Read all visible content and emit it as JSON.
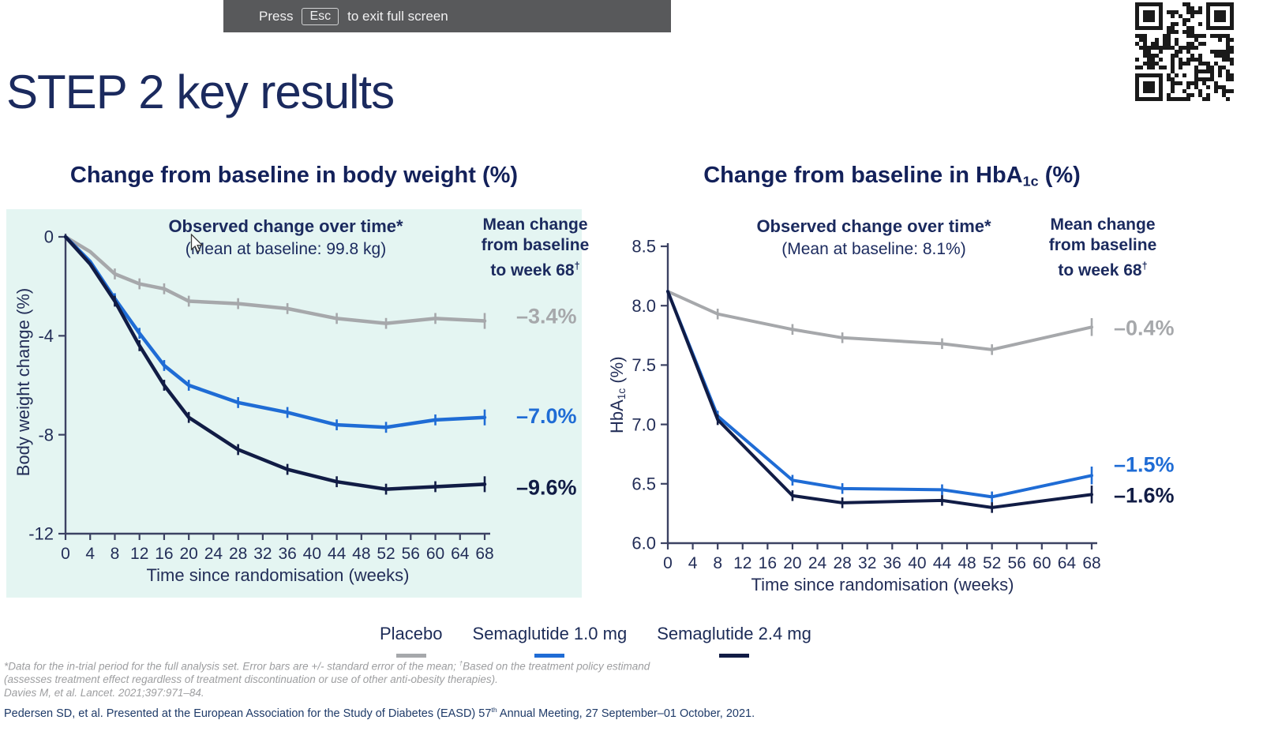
{
  "banner": {
    "press_label": "Press",
    "key_label": "Esc",
    "suffix_label": "to exit full screen"
  },
  "slide_title": "STEP 2 key results",
  "chart_data": [
    {
      "type": "line",
      "title": "Change from baseline in body weight (%)",
      "annotation_title": "Observed change over time*",
      "annotation_subtitle": "(Mean at baseline: 99.8 kg)",
      "right_header": {
        "line1": "Mean change",
        "line2": "from baseline",
        "line3": "to week 68",
        "line3_sup": "†"
      },
      "xlabel": "Time since randomisation (weeks)",
      "ylabel": "Body weight change (%)",
      "xlim": [
        0,
        68
      ],
      "ylim": [
        -12,
        0
      ],
      "grid": false,
      "xticks": [
        0,
        4,
        8,
        12,
        16,
        20,
        24,
        28,
        32,
        36,
        40,
        44,
        48,
        52,
        56,
        60,
        64,
        68
      ],
      "yticks": [
        {
          "v": 0,
          "label": "0"
        },
        {
          "v": -4,
          "label": "-4"
        },
        {
          "v": -8,
          "label": "-8"
        },
        {
          "v": -12,
          "label": "-12"
        }
      ],
      "x": [
        0,
        4,
        8,
        12,
        16,
        20,
        28,
        36,
        44,
        52,
        60,
        68
      ],
      "error_bars": {
        "half": 0.22,
        "last_half": 0.32
      },
      "series": [
        {
          "name": "Placebo",
          "color": "#a6a8ab",
          "end_label": "–3.4%",
          "values": [
            0,
            -0.6,
            -1.5,
            -1.9,
            -2.1,
            -2.6,
            -2.7,
            -2.9,
            -3.3,
            -3.5,
            -3.3,
            -3.4
          ]
        },
        {
          "name": "Semaglutide 1.0 mg",
          "color": "#1f6cd5",
          "end_label": "–7.0%",
          "values": [
            0,
            -1.0,
            -2.5,
            -3.9,
            -5.2,
            -6.0,
            -6.7,
            -7.1,
            -7.6,
            -7.7,
            -7.4,
            -7.3
          ]
        },
        {
          "name": "Semaglutide 2.4 mg",
          "color": "#111c45",
          "end_label": "–9.6%",
          "values": [
            0,
            -1.1,
            -2.6,
            -4.4,
            -6.0,
            -7.3,
            -8.6,
            -9.4,
            -9.9,
            -10.2,
            -10.1,
            -10.0
          ]
        }
      ]
    },
    {
      "type": "line",
      "title_parts": {
        "main": "Change from baseline in HbA",
        "sub": "1c",
        "tail": " (%)"
      },
      "annotation_title": "Observed change over time*",
      "annotation_subtitle": "(Mean at baseline: 8.1%)",
      "right_header": {
        "line1": "Mean change",
        "line2": "from baseline",
        "line3": "to week 68",
        "line3_sup": "†"
      },
      "xlabel": "Time since randomisation (weeks)",
      "ylabel_parts": {
        "main": "HbA",
        "sub": "1c",
        "tail": " (%)"
      },
      "xlim": [
        0,
        68
      ],
      "ylim": [
        6.0,
        8.5
      ],
      "grid": false,
      "xticks": [
        0,
        4,
        8,
        12,
        16,
        20,
        24,
        28,
        32,
        36,
        40,
        44,
        48,
        52,
        56,
        60,
        64,
        68
      ],
      "yticks": [
        {
          "v": 8.5,
          "label": "8.5"
        },
        {
          "v": 8.0,
          "label": "8.0"
        },
        {
          "v": 7.5,
          "label": "7.5"
        },
        {
          "v": 7.0,
          "label": "7.0"
        },
        {
          "v": 6.5,
          "label": "6.5"
        },
        {
          "v": 6.0,
          "label": "6.0"
        }
      ],
      "x": [
        0,
        8,
        20,
        28,
        44,
        52,
        68
      ],
      "error_bars": {
        "half": 0.045,
        "last_half": 0.075
      },
      "series": [
        {
          "name": "Placebo",
          "color": "#a6a8ab",
          "end_label": "–0.4%",
          "values": [
            8.12,
            7.93,
            7.8,
            7.73,
            7.68,
            7.63,
            7.82
          ]
        },
        {
          "name": "Semaglutide 1.0 mg",
          "color": "#1f6cd5",
          "end_label": "–1.5%",
          "values": [
            8.12,
            7.07,
            6.53,
            6.46,
            6.45,
            6.39,
            6.57
          ]
        },
        {
          "name": "Semaglutide 2.4 mg",
          "color": "#111c45",
          "end_label": "–1.6%",
          "values": [
            8.12,
            7.04,
            6.4,
            6.34,
            6.36,
            6.3,
            6.41
          ]
        }
      ]
    }
  ],
  "legend": [
    {
      "label": "Placebo",
      "color": "#a6a8ab"
    },
    {
      "label": "Semaglutide 1.0 mg",
      "color": "#1f6cd5"
    },
    {
      "label": "Semaglutide 2.4 mg",
      "color": "#111c45"
    }
  ],
  "footnotes": {
    "line1a": "*Data for the in-trial period for the full analysis set. Error bars are +/- standard error of the mean; ",
    "line1_sup": "†",
    "line1b": "Based on the treatment policy estimand",
    "line2": "(assesses treatment effect regardless of treatment discontinuation or use of other anti-obesity therapies).",
    "line3": "Davies M, et al. Lancet. 2021;397:971–84."
  },
  "reference": {
    "a": "Pedersen SD, et al. Presented at the European Association for the Study of Diabetes (EASD) 57",
    "sup": "th",
    "b": " Annual Meeting, 27 September–01 October, 2021."
  },
  "colors": {
    "accent_navy": "#1b2a5e",
    "axis": "#3c4263",
    "tick_text": "#232e58",
    "panel_bg": "#e4f5f2",
    "banner_bg": "#58595b",
    "footnote_gray": "#9d9ea0"
  }
}
